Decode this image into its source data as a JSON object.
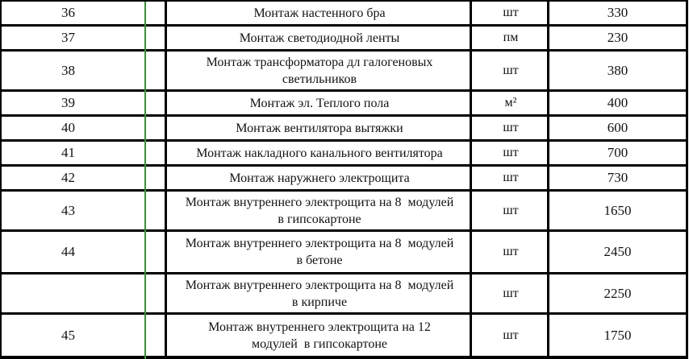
{
  "document": {
    "type": "price-list-table",
    "language": "ru"
  },
  "colors": {
    "border": "#000000",
    "page_break_line": "#3a8e3a",
    "background": "#ffffff",
    "text": "#121212"
  },
  "table": {
    "columns": [
      "number",
      "description",
      "unit",
      "price"
    ],
    "rows": [
      {
        "number": "36",
        "description": "Монтаж настенного бра",
        "unit": "шт",
        "price": "330"
      },
      {
        "number": "37",
        "description": "Монтаж светодиодной ленты",
        "unit": "пм",
        "price": "230"
      },
      {
        "number": "38",
        "description": "Монтаж трансформатора дл галогеновых светильников",
        "unit": "шт",
        "price": "380"
      },
      {
        "number": "39",
        "description": "Монтаж эл. Теплого пола",
        "unit": "м²",
        "price": "400"
      },
      {
        "number": "40",
        "description": "Монтаж вентилятора вытяжки",
        "unit": "шт",
        "price": "600"
      },
      {
        "number": "41",
        "description": "Монтаж накладного канального вентилятора",
        "unit": "шт",
        "price": "700"
      },
      {
        "number": "42",
        "description": "Монтаж наружнего электрощита",
        "unit": "шт",
        "price": "730"
      },
      {
        "number": "43",
        "description": "Монтаж внутреннего электрощита на 8  модулей  в гипсокартоне",
        "unit": "шт",
        "price": "1650"
      },
      {
        "number": "44",
        "description": "Монтаж внутреннего электрощита на 8  модулей  в бетоне",
        "unit": "шт",
        "price": "2450"
      },
      {
        "number": "",
        "description": "Монтаж внутреннего электрощита на 8  модулей  в кирпиче",
        "unit": "шт",
        "price": "2250"
      },
      {
        "number": "45",
        "description": "Монтаж внутреннего электрощита на 12  модулей  в гипсокартоне",
        "unit": "шт",
        "price": "1750"
      }
    ]
  }
}
